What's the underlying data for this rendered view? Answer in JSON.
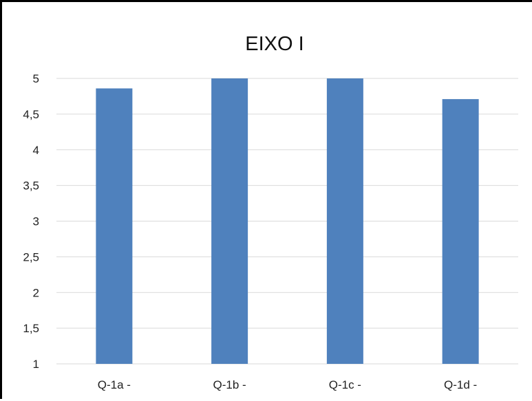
{
  "chart_data": {
    "type": "bar",
    "title": "EIXO I",
    "xlabel": "",
    "ylabel": "",
    "categories": [
      "Q-1a -",
      "Q-1b -",
      "Q-1c -",
      "Q-1d -"
    ],
    "values": [
      4.86,
      5,
      5,
      4.71
    ],
    "ylim": [
      1,
      5
    ],
    "yticks": [
      "1",
      "1,5",
      "2",
      "2,5",
      "3",
      "3,5",
      "4",
      "4,5",
      "5"
    ],
    "grid": true,
    "legend": "none",
    "bar_color": "#4f81bd",
    "grid_color": "#d9d9d9"
  }
}
